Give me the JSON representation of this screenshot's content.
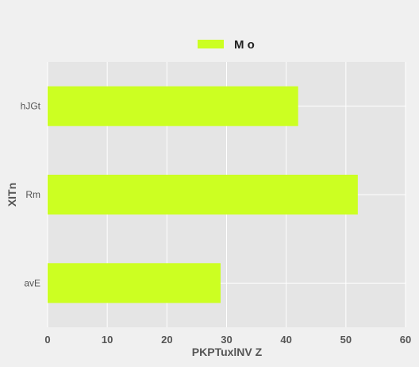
{
  "chart_data": {
    "type": "bar",
    "orientation": "horizontal",
    "categories": [
      "hJGt",
      "Rm",
      "avE"
    ],
    "series": [
      {
        "name": "M o",
        "values": [
          42,
          52,
          29
        ],
        "color": "#ccff22"
      }
    ],
    "title": "",
    "xlabel": "PKPTuxlNV Z",
    "ylabel": "XITn",
    "xlim": [
      0,
      60
    ],
    "xticks": [
      0,
      10,
      20,
      30,
      40,
      50,
      60
    ],
    "grid": true,
    "legend_position": "top-center",
    "plot_background": "#e5e5e5",
    "page_background": "#f0f0f0"
  }
}
